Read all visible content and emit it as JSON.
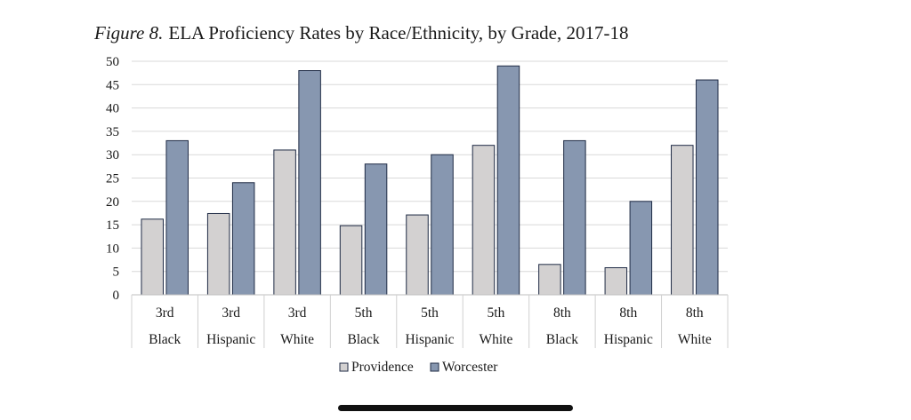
{
  "chart_data": {
    "type": "bar",
    "title_prefix": "Figure 8.",
    "title": "ELA Proficiency Rates by Race/Ethnicity, by Grade, 2017-18",
    "categories": [
      {
        "grade": "3rd",
        "group": "Black"
      },
      {
        "grade": "3rd",
        "group": "Hispanic"
      },
      {
        "grade": "3rd",
        "group": "White"
      },
      {
        "grade": "5th",
        "group": "Black"
      },
      {
        "grade": "5th",
        "group": "Hispanic"
      },
      {
        "grade": "5th",
        "group": "White"
      },
      {
        "grade": "8th",
        "group": "Black"
      },
      {
        "grade": "8th",
        "group": "Hispanic"
      },
      {
        "grade": "8th",
        "group": "White"
      }
    ],
    "series": [
      {
        "name": "Providence",
        "color": "#d3d1d1",
        "values": [
          16.2,
          17.4,
          31,
          14.8,
          17.1,
          32,
          6.5,
          5.8,
          32
        ]
      },
      {
        "name": "Worcester",
        "color": "#8797b0",
        "values": [
          33,
          24,
          48,
          28,
          30,
          49,
          33,
          20,
          46
        ]
      }
    ],
    "ylim": [
      0,
      50
    ],
    "yticks": [
      "0",
      "5",
      "10",
      "15",
      "20",
      "25",
      "30",
      "35",
      "40",
      "45",
      "50"
    ],
    "grid": true,
    "legend_position": "bottom-center"
  }
}
